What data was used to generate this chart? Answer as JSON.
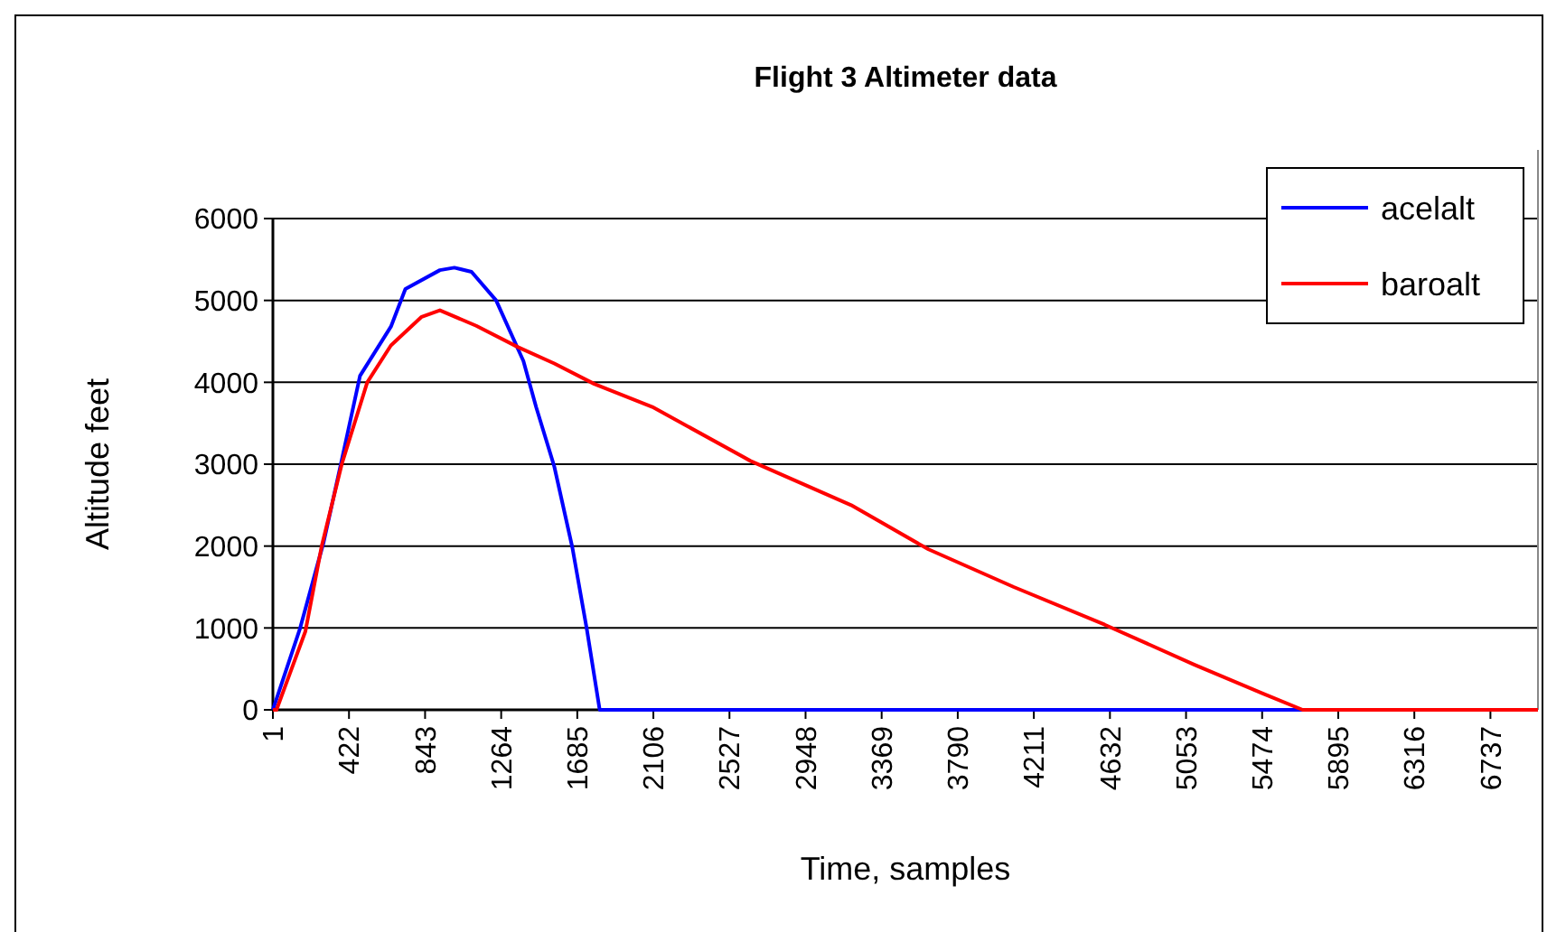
{
  "chart_data": {
    "type": "line",
    "title": "Flight 3 Altimeter data",
    "xlabel": "Time, samples",
    "ylabel": "Altitude feet",
    "xlim": [
      1,
      7000
    ],
    "xticks": [
      1,
      422,
      843,
      1264,
      1685,
      2106,
      2527,
      2948,
      3369,
      3790,
      4211,
      4632,
      5053,
      5474,
      5895,
      6316,
      6737
    ],
    "ylim": [
      0,
      6000
    ],
    "yticks": [
      0,
      1000,
      2000,
      3000,
      4000,
      5000,
      6000
    ],
    "grid": "y",
    "legend": "top right",
    "marker": "none",
    "line_style": "solid",
    "series": [
      {
        "name": "acelalt",
        "color": "#0000ff",
        "x": [
          1,
          152,
          282,
          382,
          483,
          654,
          734,
          925,
          1005,
          1100,
          1236,
          1387,
          1457,
          1558,
          1658,
          1739,
          1809,
          7000
        ],
        "values": [
          0,
          1000,
          2050,
          3050,
          4080,
          4680,
          5140,
          5370,
          5400,
          5350,
          5000,
          4260,
          3700,
          2970,
          1980,
          970,
          0,
          0
        ]
      },
      {
        "name": "baroalt",
        "color": "#ff0000",
        "x": [
          1,
          21,
          181,
          271,
          382,
          523,
          654,
          824,
          925,
          1126,
          1357,
          1558,
          1779,
          2100,
          2643,
          3200,
          3628,
          4100,
          4603,
          5100,
          5477,
          5698,
          7000
        ],
        "values": [
          0,
          0,
          960,
          2000,
          3000,
          4000,
          4450,
          4800,
          4880,
          4690,
          4430,
          4230,
          3980,
          3700,
          3040,
          2500,
          1960,
          1500,
          1040,
          550,
          200,
          0,
          0
        ]
      }
    ]
  }
}
